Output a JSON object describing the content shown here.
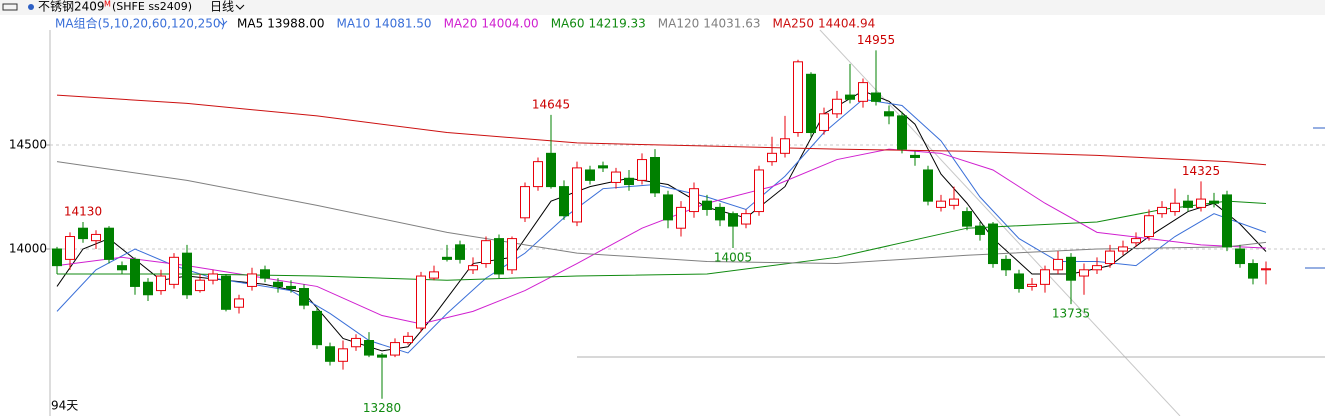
{
  "header": {
    "symbol": "不锈钢2409",
    "badge": "M",
    "code": "(SHFE ss2409)",
    "period": "日线"
  },
  "chart_data": {
    "type": "candlestick",
    "ma_group": "MA组合(5,10,20,60,120,250)",
    "days_label": "94天",
    "up_color": "#e8000b",
    "down_color": "#008000",
    "ylim": [
      13197,
      15053
    ],
    "yticks": [
      14000,
      14500
    ],
    "grid": true,
    "open": [
      14000,
      13950,
      14100,
      14040,
      14100,
      13920,
      13950,
      13840,
      13800,
      13830,
      13980,
      13800,
      13850,
      13870,
      13720,
      13820,
      13900,
      13840,
      13820,
      13810,
      13700,
      13530,
      13460,
      13530,
      13560,
      13490,
      13490,
      13550,
      13620,
      13860,
      13960,
      14020,
      13900,
      13930,
      14050,
      13900,
      14150,
      14300,
      14460,
      14300,
      14130,
      14380,
      14400,
      14320,
      14340,
      14330,
      14440,
      14260,
      14100,
      14180,
      14230,
      14200,
      14170,
      14120,
      14180,
      14420,
      14460,
      14560,
      14840,
      14570,
      14650,
      14740,
      14710,
      14750,
      14660,
      14640,
      14450,
      14380,
      14200,
      14210,
      14180,
      14110,
      14120,
      13950,
      13880,
      13820,
      13830,
      13900,
      13960,
      13870,
      13900,
      13930,
      13990,
      14030,
      14060,
      14170,
      14180,
      14230,
      14200,
      14230,
      14260,
      14000,
      13930,
      13900
    ],
    "high": [
      14010,
      14080,
      14130,
      14090,
      14110,
      13940,
      13960,
      13860,
      13900,
      13980,
      14020,
      13880,
      13900,
      13880,
      13780,
      13910,
      13920,
      13860,
      13850,
      13830,
      13720,
      13550,
      13560,
      13590,
      13600,
      13500,
      13570,
      13600,
      13890,
      13920,
      14020,
      14040,
      13960,
      14060,
      14070,
      14060,
      14320,
      14440,
      14645,
      14330,
      14420,
      14400,
      14420,
      14390,
      14380,
      14460,
      14480,
      14280,
      14230,
      14320,
      14260,
      14220,
      14180,
      14190,
      14400,
      14540,
      14640,
      14910,
      14850,
      14680,
      14760,
      14890,
      14820,
      14955,
      14690,
      14660,
      14470,
      14400,
      14260,
      14300,
      14200,
      14130,
      14130,
      13970,
      13900,
      13860,
      13920,
      13990,
      13980,
      13930,
      13960,
      14020,
      14040,
      14080,
      14190,
      14230,
      14290,
      14260,
      14325,
      14270,
      14280,
      14020,
      13950,
      13940
    ],
    "low": [
      13880,
      13900,
      14030,
      14000,
      13930,
      13880,
      13780,
      13750,
      13780,
      13810,
      13760,
      13790,
      13830,
      13700,
      13690,
      13800,
      13840,
      13790,
      13790,
      13710,
      13520,
      13440,
      13420,
      13510,
      13480,
      13280,
      13480,
      13540,
      13600,
      13850,
      13940,
      13930,
      13880,
      13910,
      13860,
      13880,
      14130,
      14280,
      14290,
      14140,
      14110,
      14310,
      14370,
      14290,
      14280,
      14310,
      14250,
      14100,
      14060,
      14150,
      14160,
      14110,
      14005,
      14100,
      14160,
      14400,
      14440,
      14540,
      14540,
      14550,
      14630,
      14700,
      14680,
      14690,
      14600,
      14460,
      14400,
      14210,
      14180,
      14190,
      14090,
      14040,
      13910,
      13870,
      13790,
      13800,
      13790,
      13880,
      13735,
      13780,
      13880,
      13910,
      13970,
      14010,
      14040,
      14150,
      14160,
      14180,
      14180,
      14200,
      13990,
      13910,
      13830,
      13830
    ],
    "close": [
      13920,
      14060,
      14050,
      14070,
      13950,
      13900,
      13820,
      13780,
      13870,
      13960,
      13780,
      13850,
      13880,
      13710,
      13760,
      13880,
      13860,
      13820,
      13810,
      13730,
      13540,
      13460,
      13520,
      13570,
      13490,
      13480,
      13550,
      13580,
      13870,
      13890,
      13950,
      13950,
      13920,
      14040,
      13880,
      14050,
      14300,
      14420,
      14300,
      14160,
      14390,
      14330,
      14390,
      14370,
      14310,
      14430,
      14270,
      14140,
      14200,
      14290,
      14190,
      14140,
      14110,
      14170,
      14380,
      14460,
      14530,
      14900,
      14560,
      14650,
      14720,
      14720,
      14800,
      14710,
      14640,
      14480,
      14440,
      14230,
      14230,
      14240,
      14110,
      14070,
      13930,
      13900,
      13810,
      13830,
      13900,
      13950,
      13850,
      13900,
      13920,
      13990,
      14010,
      14050,
      14160,
      14200,
      14220,
      14200,
      14240,
      14220,
      14010,
      13930,
      13860,
      13905
    ],
    "high_labels": [
      14130,
      14645,
      14955,
      14325
    ],
    "low_labels": [
      14005,
      13735,
      13280
    ],
    "lines": [
      {
        "name": "MA5",
        "legend_value": "13988.00",
        "color": "#000000",
        "x": [
          0,
          2,
          4,
          6,
          8,
          10,
          13,
          16,
          19,
          22,
          25,
          27,
          29,
          32,
          35,
          38,
          41,
          44,
          47,
          50,
          53,
          56,
          59,
          62,
          64,
          66,
          68,
          70,
          72,
          75,
          78,
          81,
          84,
          87,
          89,
          91,
          93
        ],
        "values": [
          13820,
          14000,
          14050,
          13950,
          13850,
          13870,
          13850,
          13830,
          13790,
          13570,
          13510,
          13530,
          13680,
          13930,
          13960,
          14230,
          14300,
          14340,
          14310,
          14200,
          14150,
          14300,
          14650,
          14760,
          14710,
          14600,
          14360,
          14220,
          14050,
          13880,
          13880,
          13920,
          14060,
          14180,
          14220,
          14120,
          13988
        ]
      },
      {
        "name": "MA10",
        "legend_value": "14081.50",
        "color": "#3a6fd8",
        "x": [
          0,
          3,
          6,
          9,
          12,
          15,
          18,
          21,
          24,
          27,
          30,
          33,
          36,
          39,
          42,
          46,
          50,
          53,
          56,
          59,
          62,
          65,
          68,
          71,
          74,
          77,
          80,
          83,
          86,
          89,
          93
        ],
        "values": [
          13700,
          13900,
          14000,
          13920,
          13860,
          13830,
          13800,
          13690,
          13560,
          13500,
          13690,
          13860,
          13980,
          14150,
          14290,
          14310,
          14250,
          14190,
          14350,
          14560,
          14720,
          14690,
          14520,
          14250,
          14050,
          13940,
          13940,
          13920,
          14060,
          14170,
          14080
        ]
      },
      {
        "name": "MA20",
        "legend_value": "14004.00",
        "color": "#d020d0",
        "x": [
          0,
          5,
          10,
          15,
          20,
          25,
          28,
          32,
          36,
          40,
          45,
          50,
          55,
          60,
          64,
          68,
          72,
          76,
          80,
          84,
          88,
          93
        ],
        "values": [
          13920,
          13960,
          13920,
          13870,
          13820,
          13680,
          13640,
          13700,
          13800,
          13930,
          14100,
          14220,
          14300,
          14430,
          14480,
          14460,
          14380,
          14220,
          14080,
          14050,
          14020,
          14004
        ]
      },
      {
        "name": "MA60",
        "legend_value": "14219.33",
        "color": "#108a10",
        "x": [
          0,
          10,
          20,
          30,
          40,
          50,
          60,
          70,
          80,
          85,
          90,
          93
        ],
        "values": [
          13880,
          13880,
          13870,
          13850,
          13870,
          13880,
          13960,
          14100,
          14130,
          14190,
          14230,
          14219
        ]
      },
      {
        "name": "MA120",
        "legend_value": "14031.63",
        "color": "#808080",
        "x": [
          0,
          10,
          20,
          30,
          40,
          50,
          60,
          70,
          80,
          90,
          93
        ],
        "values": [
          14420,
          14330,
          14210,
          14080,
          13980,
          13940,
          13930,
          13970,
          14000,
          14010,
          14032
        ]
      },
      {
        "name": "MA250",
        "legend_value": "14404.94",
        "color": "#cc1010",
        "x": [
          0,
          10,
          20,
          30,
          40,
          50,
          60,
          70,
          80,
          90,
          93
        ],
        "values": [
          14740,
          14700,
          14640,
          14560,
          14510,
          14495,
          14480,
          14470,
          14450,
          14420,
          14405
        ]
      }
    ]
  }
}
